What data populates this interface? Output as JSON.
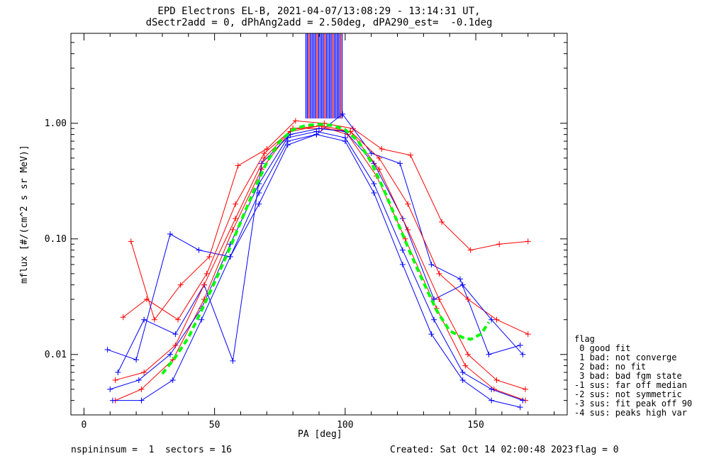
{
  "title": {
    "line1": "EPD Electrons EL-B, 2021-04-07/13:08:29 - 13:14:31 UT,",
    "line2": "dSectr2add = 0, dPhAng2add = 2.50deg, dPA290_est=  -0.1deg"
  },
  "footer": {
    "left": "nspininsum =  1  sectors = 16",
    "created": "Created: Sat Oct 14 02:00:48 2023",
    "flag": "flag = 0"
  },
  "legend": {
    "title": "flag",
    "items": [
      " 0 good fit",
      " 1 bad: not converge",
      " 2 bad: no fit",
      " 3 bad: bad fgm state",
      "-1 sus: far off median",
      "-2 sus: not symmetric",
      "-3 sus: fit peak off 90",
      "-4 sus: peaks high var"
    ]
  },
  "chart_data": {
    "type": "line",
    "xlabel": "PA [deg]",
    "ylabel": "mflux [#/(cm^2 s sr MeV)]",
    "xlim": [
      -5,
      185
    ],
    "ylim": [
      0.003,
      6
    ],
    "yscale": "log",
    "xticks": [
      0,
      50,
      100,
      150
    ],
    "yticks": [
      {
        "value": 0.01,
        "label": "0.01"
      },
      {
        "value": 0.1,
        "label": "0.10"
      },
      {
        "value": 1.0,
        "label": "1.00"
      }
    ],
    "colors": {
      "red": "#ff0000",
      "blue": "#0000ff",
      "green": "#00ff00",
      "axis": "#000000"
    },
    "series": [
      {
        "color": "red",
        "x": [
          12,
          22,
          34,
          46,
          57,
          68,
          79,
          90,
          101,
          112,
          123,
          135,
          146,
          157,
          169
        ],
        "y": [
          0.004,
          0.005,
          0.009,
          0.03,
          0.12,
          0.4,
          0.85,
          0.95,
          0.8,
          0.35,
          0.1,
          0.025,
          0.008,
          0.005,
          0.004
        ]
      },
      {
        "color": "blue",
        "x": [
          10,
          21,
          33,
          45,
          56,
          67,
          78,
          89,
          100,
          111,
          122,
          134,
          145,
          156,
          168
        ],
        "y": [
          0.005,
          0.006,
          0.01,
          0.025,
          0.09,
          0.3,
          0.75,
          0.85,
          0.75,
          0.3,
          0.08,
          0.02,
          0.007,
          0.005,
          0.004
        ]
      },
      {
        "color": "red",
        "x": [
          18,
          27,
          37,
          48,
          59,
          70,
          81,
          92,
          103,
          114,
          125,
          137,
          148,
          159,
          170
        ],
        "y": [
          0.095,
          0.02,
          0.04,
          0.07,
          0.43,
          0.6,
          1.05,
          1.0,
          0.9,
          0.6,
          0.53,
          0.14,
          0.08,
          0.09,
          0.095
        ]
      },
      {
        "color": "blue",
        "x": [
          9,
          20,
          33,
          44,
          56,
          67,
          78,
          89,
          99,
          110,
          121,
          133,
          144,
          155,
          167
        ],
        "y": [
          0.011,
          0.009,
          0.11,
          0.08,
          0.07,
          0.25,
          0.7,
          0.8,
          1.2,
          0.55,
          0.45,
          0.06,
          0.045,
          0.01,
          0.012
        ]
      },
      {
        "color": "red",
        "x": [
          15,
          24,
          36,
          47,
          58,
          69,
          80,
          91,
          102,
          113,
          124,
          136,
          147,
          158,
          170
        ],
        "y": [
          0.021,
          0.03,
          0.02,
          0.05,
          0.2,
          0.55,
          0.9,
          0.9,
          0.85,
          0.5,
          0.2,
          0.05,
          0.03,
          0.02,
          0.015
        ]
      },
      {
        "color": "blue",
        "x": [
          13,
          23,
          35,
          46,
          57,
          68,
          79,
          90,
          100,
          111,
          122,
          134,
          145,
          156,
          168
        ],
        "y": [
          0.007,
          0.02,
          0.015,
          0.04,
          0.0088,
          0.45,
          0.8,
          0.9,
          0.85,
          0.45,
          0.15,
          0.03,
          0.04,
          0.02,
          0.01
        ]
      },
      {
        "color": "blue",
        "x": [
          11,
          22,
          34,
          45,
          56,
          67,
          78,
          89,
          100,
          111,
          122,
          133,
          145,
          156,
          167
        ],
        "y": [
          0.004,
          0.004,
          0.006,
          0.02,
          0.07,
          0.2,
          0.65,
          0.8,
          0.7,
          0.25,
          0.06,
          0.015,
          0.006,
          0.004,
          0.0035
        ]
      },
      {
        "color": "red",
        "x": [
          12,
          23,
          35,
          46,
          58,
          69,
          80,
          91,
          102,
          113,
          124,
          136,
          147,
          158,
          169
        ],
        "y": [
          0.006,
          0.007,
          0.012,
          0.04,
          0.15,
          0.5,
          0.9,
          0.95,
          0.85,
          0.4,
          0.12,
          0.03,
          0.01,
          0.006,
          0.005
        ]
      }
    ],
    "spikes": {
      "x_range": [
        85,
        99
      ],
      "y_top": 6,
      "y_bottom": 1.1
    },
    "fit": {
      "color": "green",
      "x": [
        30,
        35,
        40,
        45,
        50,
        55,
        60,
        65,
        70,
        75,
        80,
        85,
        90,
        95,
        100,
        105,
        110,
        115,
        120,
        125,
        130,
        135,
        140,
        145,
        148,
        152,
        155
      ],
      "y": [
        0.0068,
        0.0095,
        0.014,
        0.024,
        0.042,
        0.075,
        0.14,
        0.26,
        0.46,
        0.7,
        0.88,
        0.96,
        0.98,
        0.96,
        0.88,
        0.7,
        0.46,
        0.26,
        0.14,
        0.075,
        0.042,
        0.024,
        0.016,
        0.014,
        0.0135,
        0.015,
        0.019
      ]
    }
  }
}
